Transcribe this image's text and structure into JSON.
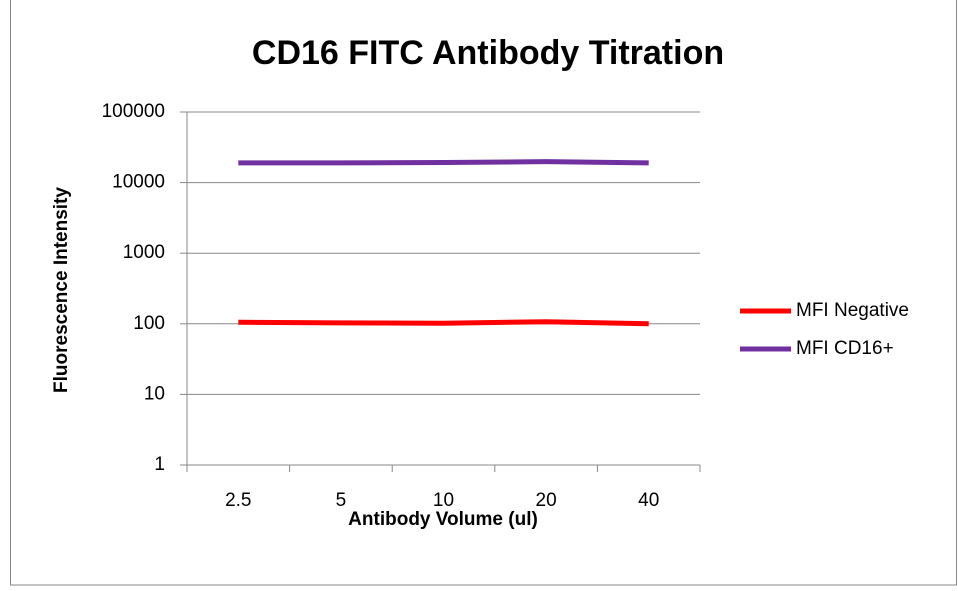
{
  "chart_data": {
    "type": "line",
    "title": "CD16 FITC Antibody Titration",
    "x_label": "Antibody Volume (ul)",
    "y_label": "Fluorescence Intensity",
    "categories": [
      "2.5",
      "5",
      "10",
      "20",
      "40"
    ],
    "series": [
      {
        "name": "MFI Negative",
        "color": "#ff0000",
        "values": [
          105,
          103,
          102,
          107,
          100
        ]
      },
      {
        "name": "MFI CD16+",
        "color": "#7030a0",
        "values": [
          19000,
          19000,
          19300,
          19800,
          19000
        ]
      }
    ],
    "ylim": [
      1,
      100000
    ],
    "yticks": [
      1,
      10,
      100,
      1000,
      10000,
      100000
    ],
    "log_y": true,
    "grid": true,
    "legend": "right"
  }
}
